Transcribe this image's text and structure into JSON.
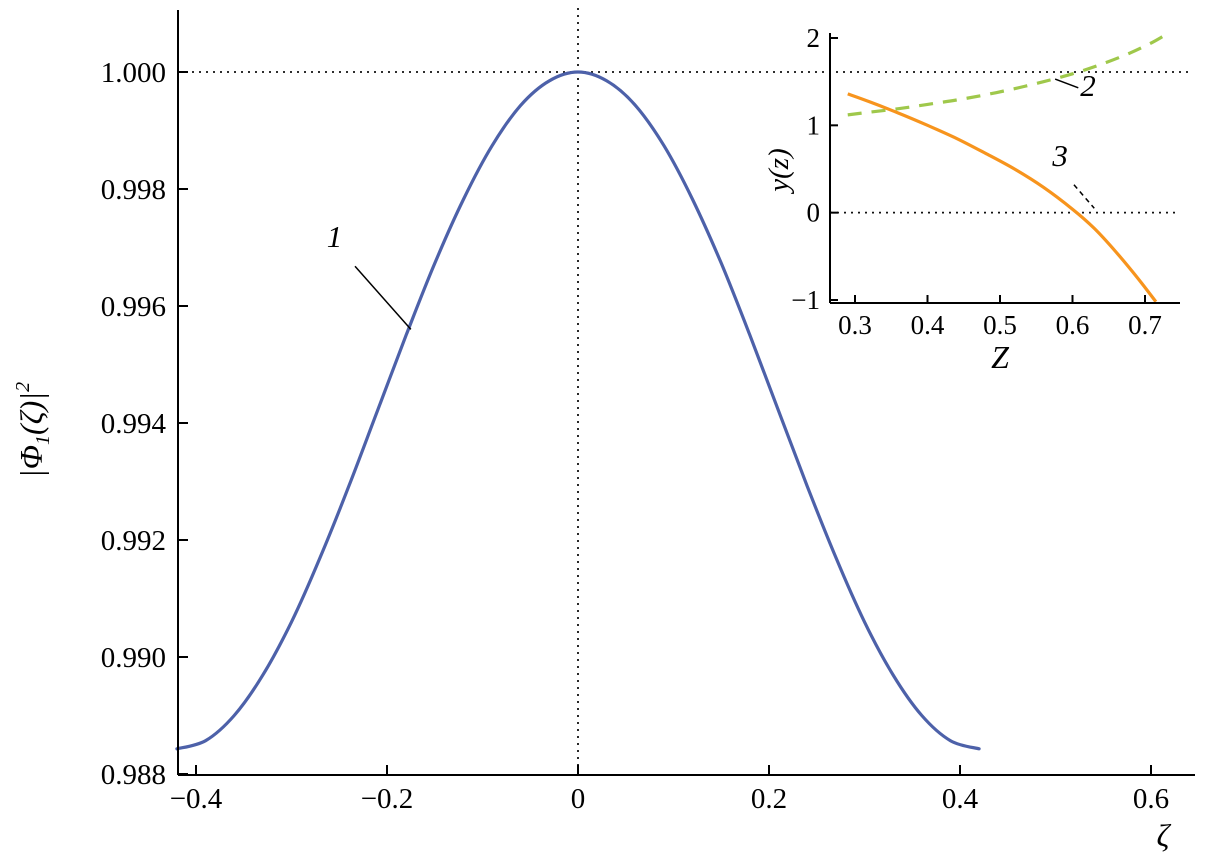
{
  "figure": {
    "background": "#ffffff"
  },
  "chart_data": [
    {
      "id": "main",
      "type": "line",
      "title": "",
      "xlabel": "ζ",
      "ylabel_parts": {
        "pre": "|Φ",
        "sub": "1",
        "mid": "(ζ)|",
        "sup": "2"
      },
      "xlim": [
        -0.418,
        0.647
      ],
      "ylim": [
        0.98798,
        1.00106
      ],
      "grid": false,
      "xticks": {
        "values": [
          -0.4,
          -0.2,
          0,
          0.2,
          0.4,
          0.6
        ],
        "labels": [
          "−0.4",
          "−0.2",
          "0",
          "0.2",
          "0.4",
          "0.6"
        ]
      },
      "yticks": {
        "values": [
          0.988,
          0.99,
          0.992,
          0.994,
          0.996,
          0.998,
          1.0
        ],
        "labels": [
          "0.988",
          "0.990",
          "0.992",
          "0.994",
          "0.996",
          "0.998",
          "1.000"
        ]
      },
      "reference_lines": [
        {
          "axis": "y",
          "value": 1.0,
          "style": "dotted"
        },
        {
          "axis": "x",
          "value": 0,
          "style": "dotted"
        }
      ],
      "series": [
        {
          "name": "1",
          "color": "#4d61a9",
          "dash": "solid",
          "width": 3.2,
          "points": [
            [
              -0.42,
              0.98843
            ],
            [
              -0.39,
              0.98857
            ],
            [
              -0.36,
              0.989
            ],
            [
              -0.33,
              0.98969
            ],
            [
              -0.3,
              0.9906
            ],
            [
              -0.27,
              0.9917
            ],
            [
              -0.24,
              0.99292
            ],
            [
              -0.21,
              0.99421
            ],
            [
              -0.18,
              0.9955
            ],
            [
              -0.15,
              0.99673
            ],
            [
              -0.12,
              0.99782
            ],
            [
              -0.09,
              0.99874
            ],
            [
              -0.06,
              0.99943
            ],
            [
              -0.03,
              0.99985
            ],
            [
              0.0,
              1.0
            ],
            [
              0.03,
              0.99985
            ],
            [
              0.06,
              0.99943
            ],
            [
              0.09,
              0.99874
            ],
            [
              0.12,
              0.99782
            ],
            [
              0.15,
              0.99673
            ],
            [
              0.18,
              0.9955
            ],
            [
              0.21,
              0.99421
            ],
            [
              0.24,
              0.99292
            ],
            [
              0.27,
              0.9917
            ],
            [
              0.3,
              0.9906
            ],
            [
              0.33,
              0.98969
            ],
            [
              0.36,
              0.989
            ],
            [
              0.39,
              0.98857
            ],
            [
              0.42,
              0.98843
            ]
          ]
        }
      ],
      "annotations": [
        {
          "label": "1",
          "x": -0.255,
          "y": 0.99701,
          "leader": [
            [
              -0.2335,
              0.99668
            ],
            [
              -0.175,
              0.9956
            ]
          ],
          "leader_style": "solid"
        }
      ]
    },
    {
      "id": "inset",
      "type": "line",
      "title": "",
      "xlabel": "Z",
      "ylabel": "y(z)",
      "xlim": [
        0.2655,
        0.748
      ],
      "ylim": [
        -1.03,
        2.06
      ],
      "grid": false,
      "xticks": {
        "values": [
          0.3,
          0.4,
          0.5,
          0.6,
          0.7
        ],
        "labels": [
          "0.3",
          "0.4",
          "0.5",
          "0.6",
          "0.7"
        ]
      },
      "yticks": {
        "values": [
          -1,
          0,
          1,
          2
        ],
        "labels": [
          "−1",
          "0",
          "1",
          "2"
        ]
      },
      "reference_lines": [
        {
          "axis": "y",
          "value": 0,
          "style": "dotted"
        }
      ],
      "series": [
        {
          "name": "2",
          "color": "#9fc84b",
          "dash": "14 10",
          "width": 3.2,
          "points": [
            [
              0.29,
              1.12
            ],
            [
              0.32,
              1.15
            ],
            [
              0.36,
              1.19
            ],
            [
              0.4,
              1.24
            ],
            [
              0.44,
              1.29
            ],
            [
              0.48,
              1.35
            ],
            [
              0.52,
              1.42
            ],
            [
              0.56,
              1.5
            ],
            [
              0.6,
              1.59
            ],
            [
              0.64,
              1.7
            ],
            [
              0.68,
              1.83
            ],
            [
              0.71,
              1.95
            ],
            [
              0.725,
              2.02
            ]
          ]
        },
        {
          "name": "3",
          "color": "#f7941d",
          "dash": "solid",
          "width": 3.2,
          "points": [
            [
              0.29,
              1.36
            ],
            [
              0.32,
              1.27
            ],
            [
              0.36,
              1.14
            ],
            [
              0.4,
              1.0
            ],
            [
              0.44,
              0.85
            ],
            [
              0.48,
              0.68
            ],
            [
              0.52,
              0.5
            ],
            [
              0.56,
              0.29
            ],
            [
              0.6,
              0.04
            ],
            [
              0.63,
              -0.18
            ],
            [
              0.66,
              -0.45
            ],
            [
              0.69,
              -0.75
            ],
            [
              0.715,
              -1.02
            ]
          ]
        }
      ],
      "annotations": [
        {
          "label": "2",
          "x": 0.6214,
          "y": 1.336,
          "leader": [
            [
              0.608,
              1.43
            ],
            [
              0.576,
              1.53
            ]
          ],
          "leader_style": "solid"
        },
        {
          "label": "3",
          "x": 0.583,
          "y": 0.534,
          "leader": [
            [
              0.602,
              0.32
            ],
            [
              0.63,
              0.05
            ]
          ],
          "leader_style": "dashed"
        }
      ]
    }
  ]
}
